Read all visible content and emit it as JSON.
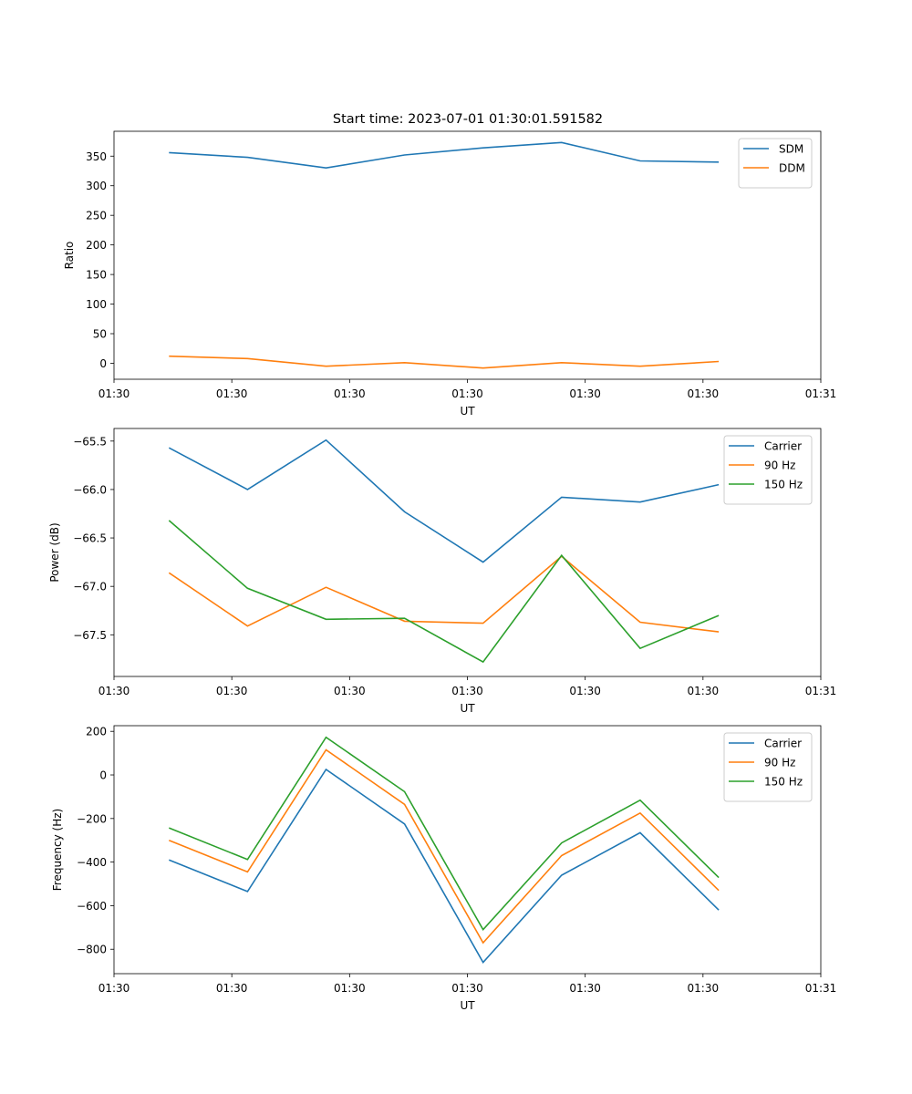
{
  "figure_title": "Start time: 2023-07-01 01:30:01.591582",
  "chart_data": [
    {
      "type": "line",
      "title": "Start time: 2023-07-01 01:30:01.591582",
      "xlabel": "UT",
      "ylabel": "Ratio",
      "xlim": [
        0,
        9
      ],
      "ylim": [
        -27,
        392
      ],
      "x": [
        0.7,
        1.7,
        2.7,
        3.7,
        4.7,
        5.7,
        6.7,
        7.7
      ],
      "xticks": [
        0,
        1.5,
        3,
        4.5,
        6,
        7.5,
        9
      ],
      "xtick_labels": [
        "01:30",
        "01:30",
        "01:30",
        "01:30",
        "01:30",
        "01:30",
        "01:31"
      ],
      "yticks": [
        0,
        50,
        100,
        150,
        200,
        250,
        300,
        350
      ],
      "ytick_labels": [
        "0",
        "50",
        "100",
        "150",
        "200",
        "250",
        "300",
        "350"
      ],
      "legend": "top-right",
      "series": [
        {
          "name": "SDM",
          "color": "#1f77b4",
          "values": [
            356,
            348,
            330,
            352,
            364,
            373,
            342,
            340
          ]
        },
        {
          "name": "DDM",
          "color": "#ff7f0e",
          "values": [
            12,
            8,
            -5,
            1,
            -8,
            1,
            -5,
            3
          ]
        }
      ]
    },
    {
      "type": "line",
      "title": "",
      "xlabel": "UT",
      "ylabel": "Power (dB)",
      "xlim": [
        0,
        9
      ],
      "ylim": [
        -67.93,
        -65.37
      ],
      "x": [
        0.7,
        1.7,
        2.7,
        3.7,
        4.7,
        5.7,
        6.7,
        7.7
      ],
      "xticks": [
        0,
        1.5,
        3,
        4.5,
        6,
        7.5,
        9
      ],
      "xtick_labels": [
        "01:30",
        "01:30",
        "01:30",
        "01:30",
        "01:30",
        "01:30",
        "01:31"
      ],
      "yticks": [
        -67.5,
        -67.0,
        -66.5,
        -66.0,
        -65.5
      ],
      "ytick_labels": [
        "−67.5",
        "−67.0",
        "−66.5",
        "−66.0",
        "−65.5"
      ],
      "legend": "top-right",
      "series": [
        {
          "name": "Carrier",
          "color": "#1f77b4",
          "values": [
            -65.57,
            -66.0,
            -65.49,
            -66.23,
            -66.75,
            -66.08,
            -66.13,
            -65.95
          ]
        },
        {
          "name": "90 Hz",
          "color": "#ff7f0e",
          "values": [
            -66.86,
            -67.41,
            -67.01,
            -67.36,
            -67.38,
            -66.69,
            -67.37,
            -67.47
          ]
        },
        {
          "name": "150 Hz",
          "color": "#2ca02c",
          "values": [
            -66.32,
            -67.02,
            -67.34,
            -67.33,
            -67.78,
            -66.68,
            -67.64,
            -67.3
          ]
        }
      ]
    },
    {
      "type": "line",
      "title": "",
      "xlabel": "UT",
      "ylabel": "Frequency (Hz)",
      "xlim": [
        0,
        9
      ],
      "ylim": [
        -912,
        226
      ],
      "x": [
        0.7,
        1.7,
        2.7,
        3.7,
        4.7,
        5.7,
        6.7,
        7.7
      ],
      "xticks": [
        0,
        1.5,
        3,
        4.5,
        6,
        7.5,
        9
      ],
      "xtick_labels": [
        "01:30",
        "01:30",
        "01:30",
        "01:30",
        "01:30",
        "01:30",
        "01:31"
      ],
      "yticks": [
        -800,
        -600,
        -400,
        -200,
        0,
        200
      ],
      "ytick_labels": [
        "−800",
        "−600",
        "−400",
        "−200",
        "0",
        "200"
      ],
      "legend": "top-right",
      "series": [
        {
          "name": "Carrier",
          "color": "#1f77b4",
          "values": [
            -390,
            -535,
            25,
            -225,
            -860,
            -460,
            -265,
            -620
          ]
        },
        {
          "name": "90 Hz",
          "color": "#ff7f0e",
          "values": [
            -300,
            -445,
            115,
            -135,
            -770,
            -370,
            -175,
            -530
          ]
        },
        {
          "name": "150 Hz",
          "color": "#2ca02c",
          "values": [
            -243,
            -388,
            173,
            -77,
            -710,
            -312,
            -116,
            -471
          ]
        }
      ]
    }
  ]
}
